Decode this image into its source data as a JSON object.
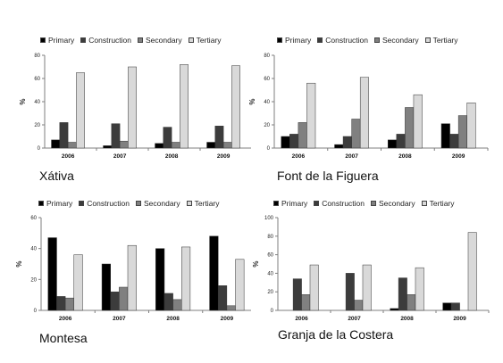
{
  "colors": {
    "Primary": "#000000",
    "Construction": "#3c3c3c",
    "Secondary": "#808080",
    "Tertiary": "#d9d9d9",
    "axis": "#7f7f7f",
    "bar_stroke": "#333333"
  },
  "chart_data": [
    {
      "type": "bar",
      "title": "Xátiva",
      "categories": [
        "2006",
        "2007",
        "2008",
        "2009"
      ],
      "series": [
        {
          "name": "Primary",
          "values": [
            7,
            2,
            4,
            5
          ]
        },
        {
          "name": "Construction",
          "values": [
            22,
            21,
            18,
            19
          ]
        },
        {
          "name": "Secondary",
          "values": [
            5,
            6,
            5,
            5
          ]
        },
        {
          "name": "Tertiary",
          "values": [
            65,
            70,
            72,
            71
          ]
        }
      ],
      "xlabel": "",
      "ylabel": "%",
      "ylim": [
        0,
        80
      ],
      "yticks": [
        "0",
        "20",
        "40",
        "60",
        "80"
      ],
      "legend": "top",
      "grid": false
    },
    {
      "type": "bar",
      "title": "Font de la Figuera",
      "categories": [
        "2006",
        "2007",
        "2008",
        "2009"
      ],
      "series": [
        {
          "name": "Primary",
          "values": [
            10,
            3,
            7,
            21
          ]
        },
        {
          "name": "Construction",
          "values": [
            12,
            10,
            12,
            12
          ]
        },
        {
          "name": "Secondary",
          "values": [
            22,
            25,
            35,
            28
          ]
        },
        {
          "name": "Tertiary",
          "values": [
            56,
            61,
            46,
            39
          ]
        }
      ],
      "xlabel": "",
      "ylabel": "%",
      "ylim": [
        0,
        80
      ],
      "yticks": [
        "0",
        "20",
        "40",
        "60",
        "80"
      ],
      "legend": "top",
      "grid": false
    },
    {
      "type": "bar",
      "title": "Montesa",
      "categories": [
        "2006",
        "2007",
        "2008",
        "2009"
      ],
      "series": [
        {
          "name": "Primary",
          "values": [
            47,
            30,
            40,
            48
          ]
        },
        {
          "name": "Construction",
          "values": [
            9,
            12,
            11,
            16
          ]
        },
        {
          "name": "Secondary",
          "values": [
            8,
            15,
            7,
            3
          ]
        },
        {
          "name": "Tertiary",
          "values": [
            36,
            42,
            41,
            33
          ]
        }
      ],
      "xlabel": "",
      "ylabel": "%",
      "ylim": [
        0,
        60
      ],
      "yticks": [
        "0",
        "20",
        "40",
        "60"
      ],
      "legend": "top",
      "grid": false
    },
    {
      "type": "bar",
      "title": "Granja de la Costera",
      "categories": [
        "2006",
        "2007",
        "2008",
        "2009"
      ],
      "series": [
        {
          "name": "Primary",
          "values": [
            0,
            0,
            2,
            8
          ]
        },
        {
          "name": "Construction",
          "values": [
            34,
            40,
            35,
            8
          ]
        },
        {
          "name": "Secondary",
          "values": [
            17,
            11,
            17,
            0
          ]
        },
        {
          "name": "Tertiary",
          "values": [
            49,
            49,
            46,
            84
          ]
        }
      ],
      "xlabel": "",
      "ylabel": "%",
      "ylim": [
        0,
        100
      ],
      "yticks": [
        "0",
        "20",
        "40",
        "60",
        "80",
        "100"
      ],
      "legend": "top",
      "grid": false
    }
  ]
}
